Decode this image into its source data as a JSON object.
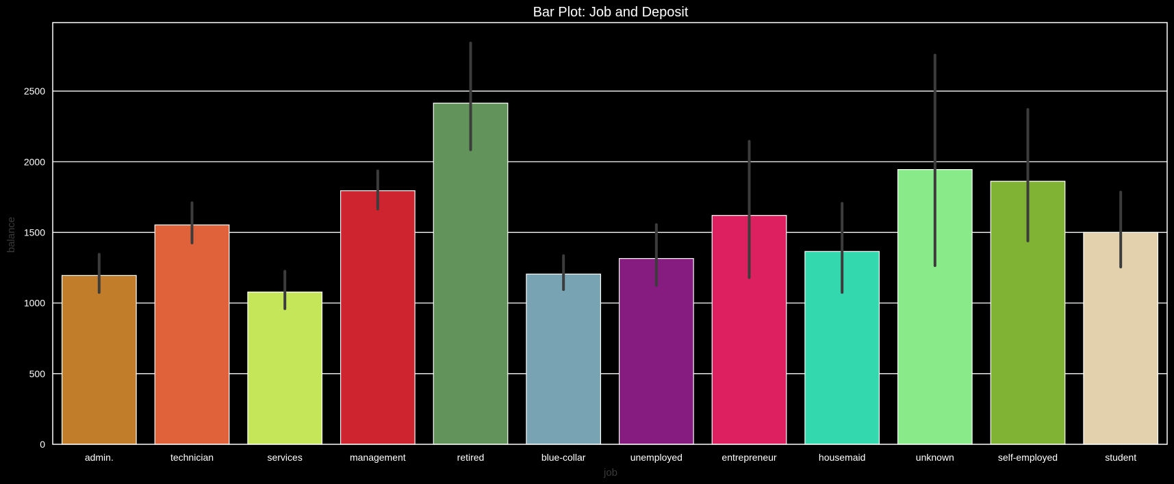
{
  "chart_data": {
    "type": "bar",
    "title": "Bar Plot: Job and Deposit",
    "xlabel": "job",
    "ylabel": "balance",
    "categories": [
      "admin.",
      "technician",
      "services",
      "management",
      "retired",
      "blue-collar",
      "unemployed",
      "entrepreneur",
      "housemaid",
      "unknown",
      "self-employed",
      "student"
    ],
    "values": [
      1195,
      1553,
      1078,
      1795,
      2415,
      1205,
      1315,
      1620,
      1365,
      1945,
      1862,
      1500
    ],
    "error_bars": [
      [
        1075,
        1345
      ],
      [
        1425,
        1710
      ],
      [
        960,
        1225
      ],
      [
        1665,
        1935
      ],
      [
        2085,
        2840
      ],
      [
        1095,
        1335
      ],
      [
        1125,
        1555
      ],
      [
        1180,
        2145
      ],
      [
        1075,
        1705
      ],
      [
        1265,
        2755
      ],
      [
        1440,
        2370
      ],
      [
        1255,
        1785
      ]
    ],
    "bar_colors": [
      "#c17d2a",
      "#e0623b",
      "#c6e65a",
      "#cd2430",
      "#62935a",
      "#77a3b3",
      "#861c80",
      "#dd2060",
      "#33d8ae",
      "#88ea88",
      "#80b233",
      "#e3d0ad"
    ],
    "yticks": [
      0,
      500,
      1000,
      1500,
      2000,
      2500
    ],
    "ylim": [
      0,
      2985
    ],
    "grid": true,
    "colors": {
      "background": "#000000",
      "grid": "#ffffff",
      "error_bar": "#3c3c3c",
      "axis_label": "#3a3a3a",
      "text": "#ffffff"
    }
  }
}
